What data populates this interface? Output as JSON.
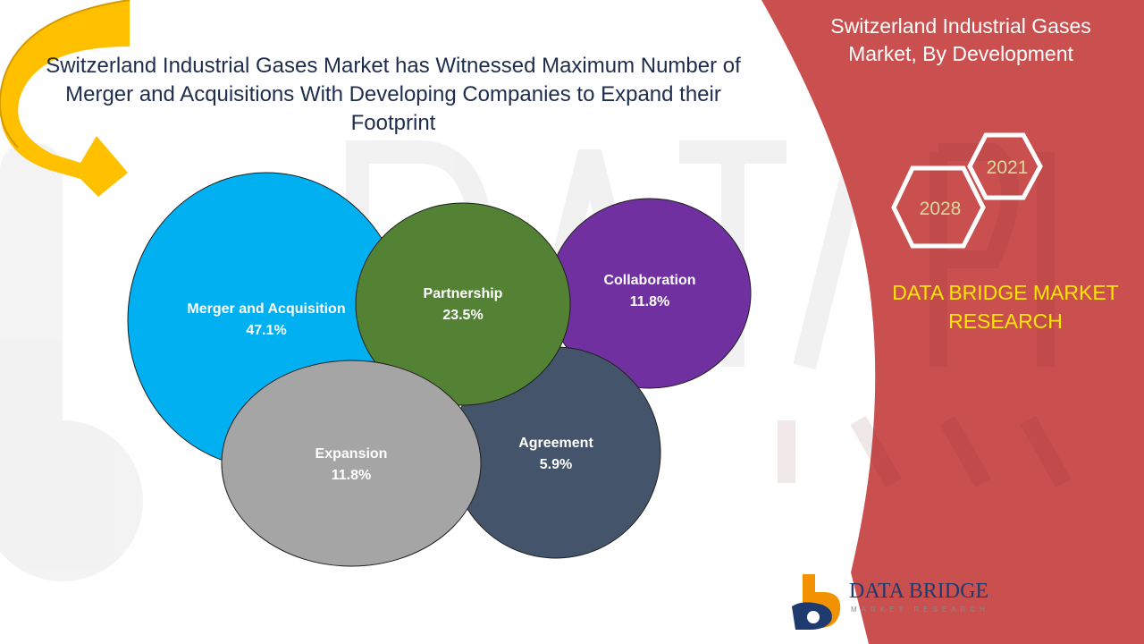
{
  "headline": "Switzerland Industrial Gases Market has Witnessed Maximum Number of Merger and Acquisitions With Developing Companies to Expand their Footprint",
  "panel": {
    "title": "Switzerland Industrial Gases Market, By Development",
    "year_start": "2021",
    "year_end": "2028",
    "brand": "DATA BRIDGE MARKET RESEARCH"
  },
  "logo": {
    "name": "DATA BRIDGE",
    "tagline": "MARKET RESEARCH"
  },
  "colors": {
    "panel": "#c9504e",
    "brand_text": "#ffe600",
    "merger": "#00b0f0",
    "partnership": "#548235",
    "collaboration": "#7030a0",
    "agreement": "#44546a",
    "expansion": "#a5a5a5",
    "arrow": "#ffc000"
  },
  "chart_data": {
    "type": "bubble",
    "title": "Switzerland Industrial Gases Market, By Development",
    "categories": [
      "Merger and Acquisition",
      "Partnership",
      "Collaboration",
      "Agreement",
      "Expansion"
    ],
    "values": [
      47.1,
      23.5,
      11.8,
      5.9,
      11.8
    ],
    "value_labels": [
      "47.1%",
      "23.5%",
      "11.8%",
      "5.9%",
      "11.8%"
    ],
    "unit": "%"
  }
}
